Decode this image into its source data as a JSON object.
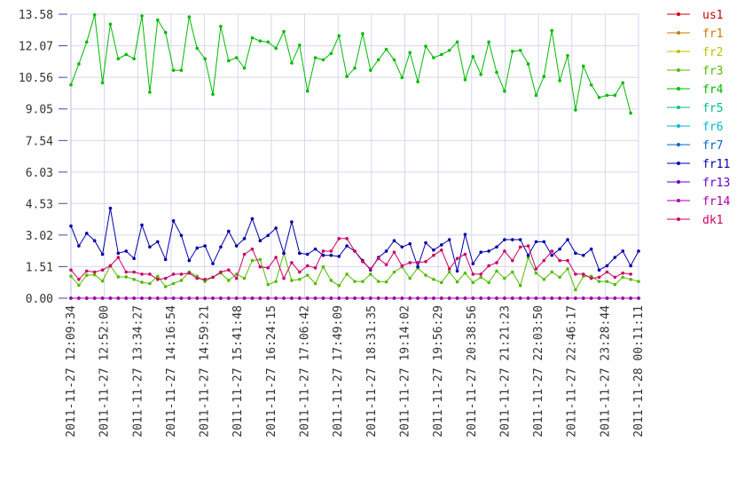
{
  "chart_data": {
    "type": "line",
    "title": "",
    "xlabel": "",
    "ylabel": "",
    "ylim": [
      0,
      13.58
    ],
    "yticks": [
      "0.00",
      "1.51",
      "3.02",
      "4.53",
      "6.03",
      "7.54",
      "9.05",
      "10.56",
      "12.07",
      "13.58"
    ],
    "xticks": [
      "2011-11-27 12:09:34",
      "2011-11-27 12:52:00",
      "2011-11-27 13:34:27",
      "2011-11-27 14:16:54",
      "2011-11-27 14:59:21",
      "2011-11-27 15:41:48",
      "2011-11-27 16:24:15",
      "2011-11-27 17:06:42",
      "2011-11-27 17:49:09",
      "2011-11-27 18:31:35",
      "2011-11-27 19:14:02",
      "2011-11-27 19:56:29",
      "2011-11-27 20:38:56",
      "2011-11-27 21:21:23",
      "2011-11-27 22:03:50",
      "2011-11-27 22:46:17",
      "2011-11-27 23:28:44",
      "2011-11-28 00:11:11"
    ],
    "grid": true,
    "legend_position": "right",
    "series": [
      {
        "name": "us1",
        "color": "#cc0000",
        "values": "zero"
      },
      {
        "name": "fr1",
        "color": "#cc7a00",
        "values": "zero"
      },
      {
        "name": "fr2",
        "color": "#b8c400",
        "values": "zero"
      },
      {
        "name": "fr3",
        "color": "#55bb00",
        "values": [
          1.05,
          0.62,
          1.1,
          1.12,
          0.82,
          1.55,
          1.02,
          1.02,
          0.9,
          0.76,
          0.7,
          1.05,
          0.55,
          0.7,
          0.85,
          1.25,
          1.05,
          0.8,
          1.0,
          1.2,
          0.85,
          1.15,
          0.95,
          1.8,
          1.85,
          0.65,
          0.8,
          2.15,
          0.85,
          0.9,
          1.1,
          0.7,
          1.5,
          0.85,
          0.6,
          1.15,
          0.8,
          0.8,
          1.15,
          0.8,
          0.78,
          1.25,
          1.5,
          0.95,
          1.45,
          1.1,
          0.9,
          0.75,
          1.25,
          0.78,
          1.2,
          0.75,
          1.0,
          0.75,
          1.3,
          0.95,
          1.25,
          0.6,
          1.95,
          1.2,
          0.9,
          1.25,
          1.0,
          1.4,
          0.4,
          1.05,
          1.05,
          0.8,
          0.8,
          0.65,
          1.0,
          0.9,
          0.8
        ]
      },
      {
        "name": "fr4",
        "color": "#00bb00",
        "values": [
          10.2,
          11.2,
          12.25,
          13.55,
          10.3,
          13.1,
          11.45,
          11.65,
          11.45,
          13.5,
          9.85,
          13.3,
          12.7,
          10.9,
          10.9,
          13.45,
          11.95,
          11.45,
          9.75,
          13.0,
          11.35,
          11.5,
          11.0,
          12.45,
          12.3,
          12.25,
          11.95,
          12.75,
          11.25,
          12.1,
          9.9,
          11.5,
          11.4,
          11.7,
          12.55,
          10.6,
          11.0,
          12.65,
          10.9,
          11.4,
          11.9,
          11.4,
          10.55,
          11.75,
          10.35,
          12.05,
          11.5,
          11.65,
          11.85,
          12.25,
          10.45,
          11.55,
          10.7,
          12.25,
          10.8,
          9.9,
          11.8,
          11.85,
          11.2,
          9.7,
          10.6,
          12.8,
          10.4,
          11.6,
          9.0,
          11.1,
          10.2,
          9.6,
          9.7,
          9.7,
          10.3,
          8.85
        ]
      },
      {
        "name": "fr5",
        "color": "#00c080",
        "values": "zero"
      },
      {
        "name": "fr6",
        "color": "#00b8cc",
        "values": "zero"
      },
      {
        "name": "fr7",
        "color": "#0066cc",
        "values": "zero"
      },
      {
        "name": "fr11",
        "color": "#0000aa",
        "values": [
          3.45,
          2.5,
          3.1,
          2.75,
          2.1,
          4.3,
          2.15,
          2.25,
          1.9,
          3.5,
          2.45,
          2.7,
          1.85,
          3.7,
          3.0,
          1.8,
          2.4,
          2.5,
          1.65,
          2.45,
          3.2,
          2.5,
          2.85,
          3.8,
          2.75,
          3.0,
          3.35,
          2.15,
          3.65,
          2.15,
          2.1,
          2.35,
          2.05,
          2.05,
          2.0,
          2.5,
          2.25,
          1.8,
          1.35,
          1.95,
          2.25,
          2.75,
          2.45,
          2.6,
          1.5,
          2.65,
          2.3,
          2.55,
          2.8,
          1.3,
          3.05,
          1.65,
          2.2,
          2.25,
          2.45,
          2.8,
          2.8,
          2.8,
          2.05,
          2.7,
          2.7,
          2.05,
          2.35,
          2.8,
          2.15,
          2.05,
          2.35,
          1.35,
          1.55,
          1.95,
          2.25,
          1.55,
          2.25
        ]
      },
      {
        "name": "fr13",
        "color": "#6600cc",
        "values": "zero"
      },
      {
        "name": "fr14",
        "color": "#aa00aa",
        "values": "zero"
      },
      {
        "name": "dk1",
        "color": "#cc0066",
        "values": [
          1.35,
          0.9,
          1.3,
          1.25,
          1.35,
          1.55,
          1.95,
          1.25,
          1.25,
          1.15,
          1.15,
          0.9,
          0.95,
          1.15,
          1.15,
          1.2,
          0.95,
          0.9,
          1.0,
          1.25,
          1.35,
          0.95,
          2.1,
          2.35,
          1.5,
          1.45,
          1.95,
          0.95,
          1.7,
          1.25,
          1.55,
          1.45,
          2.25,
          2.25,
          2.85,
          2.85,
          2.25,
          1.75,
          1.4,
          1.9,
          1.6,
          2.2,
          1.55,
          1.7,
          1.7,
          1.75,
          2.05,
          2.3,
          1.4,
          1.9,
          2.1,
          1.15,
          1.15,
          1.55,
          1.7,
          2.25,
          1.8,
          2.45,
          2.5,
          1.4,
          1.8,
          2.25,
          1.8,
          1.8,
          1.15,
          1.15,
          0.95,
          1.0,
          1.25,
          1.0,
          1.2,
          1.15
        ]
      }
    ]
  }
}
